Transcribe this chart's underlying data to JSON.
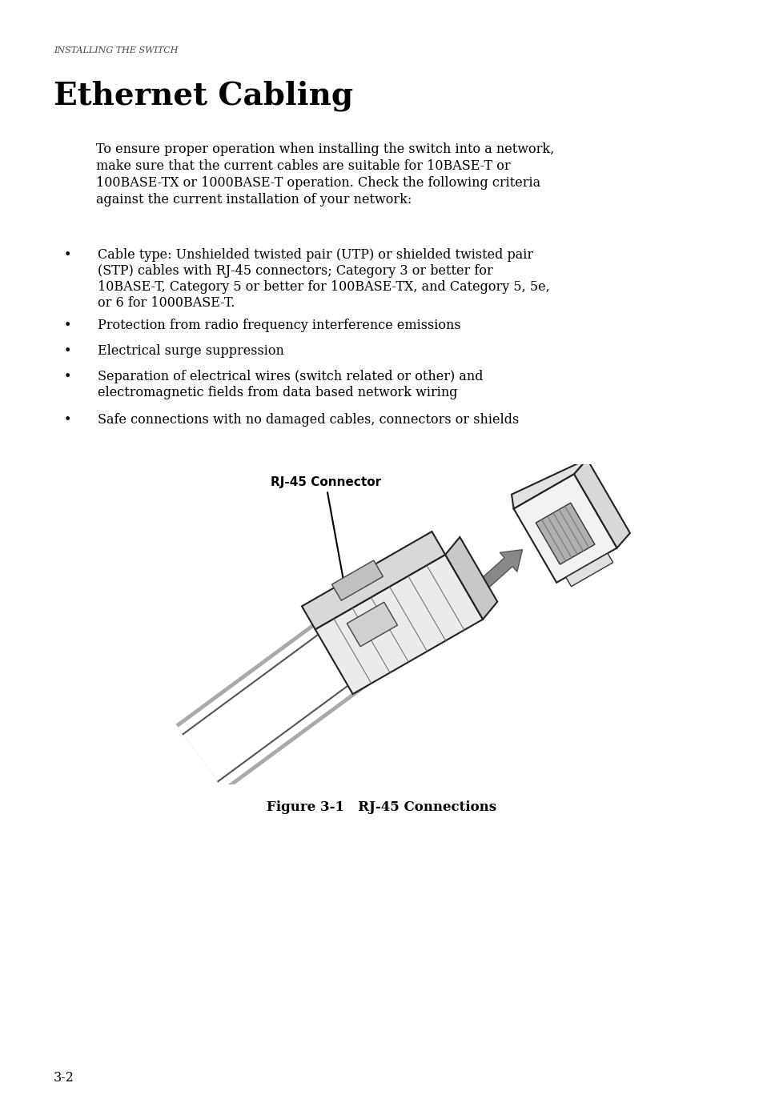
{
  "bg_color": "#ffffff",
  "header_text": "INSTALLING THE SWITCH",
  "title": "Ethernet Cabling",
  "body_text_lines": [
    "To ensure proper operation when installing the switch into a network,",
    "make sure that the current cables are suitable for 10BASE-T or",
    "100BASE-TX or 1000BASE-T operation. Check the following criteria",
    "against the current installation of your network:"
  ],
  "bullet1_lines": [
    "Cable type: Unshielded twisted pair (UTP) or shielded twisted pair",
    "(STP) cables with RJ-45 connectors; Category 3 or better for",
    "10BASE-T, Category 5 or better for 100BASE-TX, and Category 5, 5e,",
    "or 6 for 1000BASE-T."
  ],
  "bullet2": "Protection from radio frequency interference emissions",
  "bullet3": "Electrical surge suppression",
  "bullet4_lines": [
    "Separation of electrical wires (switch related or other) and",
    "electromagnetic fields from data based network wiring"
  ],
  "bullet5": "Safe connections with no damaged cables, connectors or shields",
  "figure_caption": "Figure 3-1   RJ-45 Connections",
  "connector_label": "RJ-45 Connector",
  "page_number": "3-2"
}
